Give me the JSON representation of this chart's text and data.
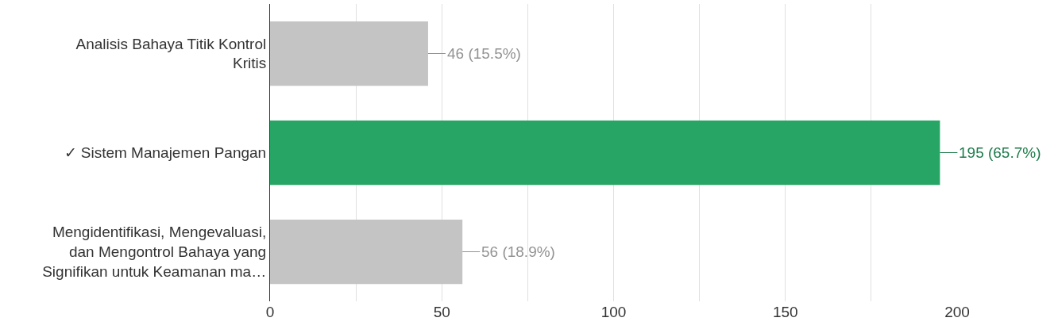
{
  "chart_data": {
    "type": "bar",
    "orientation": "horizontal",
    "categories": [
      "Analisis Bahaya Titik Kontrol Kritis",
      "✓ Sistem Manajemen Pangan",
      "Mengidentifikasi, Mengevaluasi, dan Mengontrol Bahaya yang Signifikan untuk Keamanan ma…"
    ],
    "values": [
      46,
      195,
      56
    ],
    "colors": [
      "#c4c4c4",
      "#27a564",
      "#c4c4c4"
    ],
    "value_labels": [
      "46 (15.5%)",
      "195 (65.7%)",
      "56 (18.9%)"
    ],
    "xlim": [
      0,
      200
    ],
    "xticks": [
      0,
      {
        "value": 25,
        "label": null
      },
      50,
      {
        "value": 75,
        "label": null
      },
      100,
      {
        "value": 125,
        "label": null
      },
      150,
      {
        "value": 175,
        "label": null
      },
      200
    ],
    "grid": "x"
  }
}
